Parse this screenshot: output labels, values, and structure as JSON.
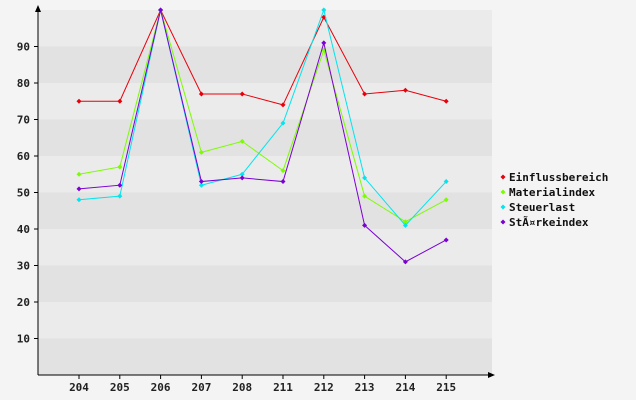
{
  "chart_data": {
    "type": "line",
    "title": "",
    "xlabel": "",
    "ylabel": "",
    "categories": [
      "204",
      "205",
      "206",
      "207",
      "208",
      "211",
      "212",
      "213",
      "214",
      "215"
    ],
    "ylim": [
      0,
      100
    ],
    "yticks": [
      10,
      20,
      30,
      40,
      50,
      60,
      70,
      80,
      90
    ],
    "grid": "horizontal alternating bands",
    "legend_position": "right",
    "series": [
      {
        "name": "Einflussbereich",
        "color": "#e8000b",
        "values": [
          75,
          75,
          100,
          77,
          77,
          74,
          98,
          77,
          78,
          75
        ]
      },
      {
        "name": "Materialindex",
        "color": "#7cfc00",
        "values": [
          55,
          57,
          100,
          61,
          64,
          56,
          89,
          49,
          42,
          48
        ]
      },
      {
        "name": "Steuerlast",
        "color": "#00e5ee",
        "values": [
          48,
          49,
          100,
          52,
          55,
          69,
          100,
          54,
          41,
          53
        ]
      },
      {
        "name": "StÃ¤rkeindex",
        "color": "#7b00d4",
        "values": [
          51,
          52,
          100,
          53,
          54,
          53,
          91,
          41,
          31,
          37
        ]
      }
    ]
  }
}
